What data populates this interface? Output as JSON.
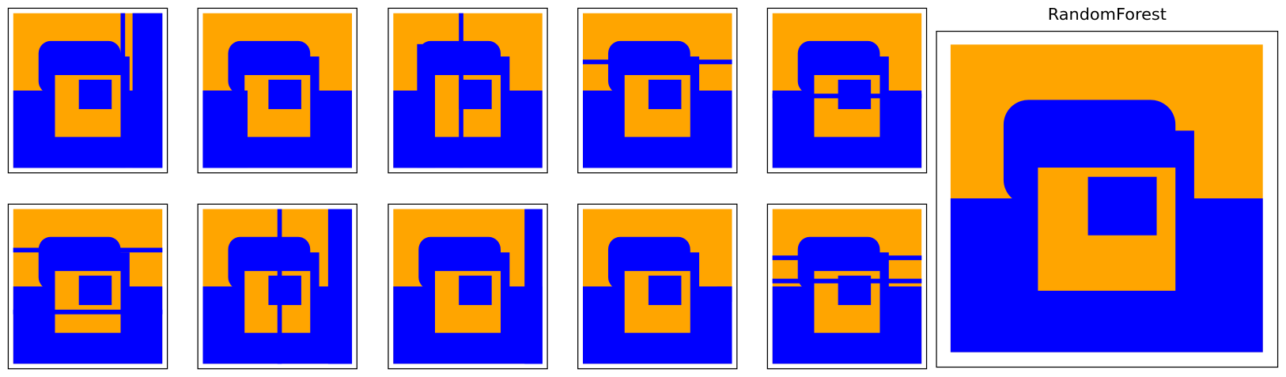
{
  "main_panel": {
    "title": "RandomForest"
  }
}
